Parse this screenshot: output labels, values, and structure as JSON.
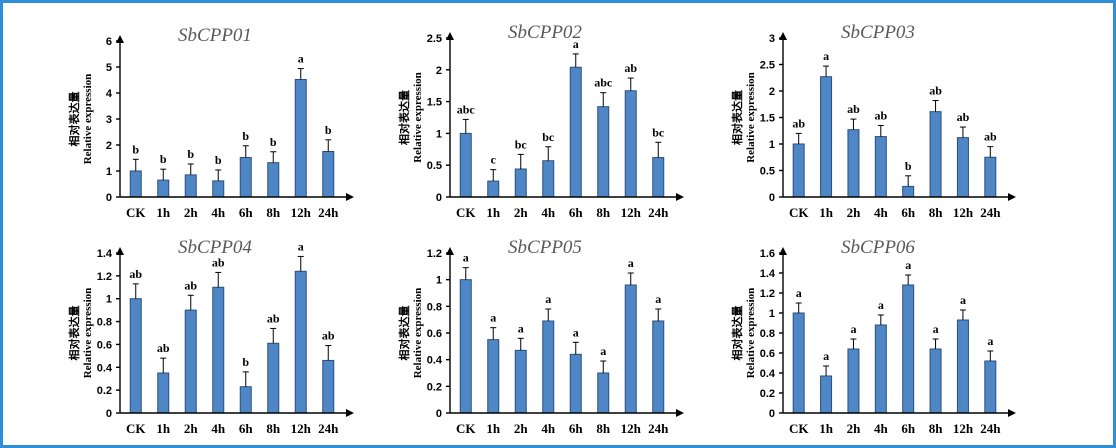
{
  "colors": {
    "bar": "#4f86c6",
    "frame": "#2e8fd6",
    "title": "#595959"
  },
  "chart_data": [
    {
      "type": "bar",
      "title": "SbCPP01",
      "ylabel_cn": "相对表达量",
      "ylabel": "Relative expression",
      "categories": [
        "CK",
        "1h",
        "2h",
        "4h",
        "6h",
        "8h",
        "12h",
        "24h"
      ],
      "values": [
        1.0,
        0.65,
        0.85,
        0.62,
        1.52,
        1.32,
        4.52,
        1.75
      ],
      "errors": [
        0.45,
        0.42,
        0.42,
        0.42,
        0.45,
        0.42,
        0.42,
        0.45
      ],
      "labels": [
        "b",
        "b",
        "b",
        "b",
        "b",
        "b",
        "a",
        "b"
      ],
      "ylim": [
        0,
        6
      ],
      "yticks": [
        "0",
        "1",
        "2",
        "3",
        "4",
        "5",
        "6"
      ]
    },
    {
      "type": "bar",
      "title": "SbCPP02",
      "ylabel_cn": "相对表达量",
      "ylabel": "Relative expression",
      "categories": [
        "CK",
        "1h",
        "2h",
        "4h",
        "6h",
        "8h",
        "12h",
        "24h"
      ],
      "values": [
        1.0,
        0.25,
        0.44,
        0.57,
        2.04,
        1.42,
        1.67,
        0.62
      ],
      "errors": [
        0.22,
        0.18,
        0.23,
        0.22,
        0.21,
        0.22,
        0.2,
        0.24
      ],
      "labels": [
        "abc",
        "c",
        "bc",
        "bc",
        "a",
        "abc",
        "ab",
        "bc"
      ],
      "ylim": [
        0,
        2.5
      ],
      "yticks": [
        "0",
        "0.5",
        "1",
        "1.5",
        "2",
        "2.5"
      ]
    },
    {
      "type": "bar",
      "title": "SbCPP03",
      "ylabel_cn": "相对表达量",
      "ylabel": "Relative expression",
      "categories": [
        "CK",
        "1h",
        "2h",
        "4h",
        "6h",
        "8h",
        "12h",
        "24h"
      ],
      "values": [
        1.0,
        2.27,
        1.27,
        1.14,
        0.2,
        1.61,
        1.12,
        0.75
      ],
      "errors": [
        0.2,
        0.2,
        0.2,
        0.21,
        0.2,
        0.21,
        0.2,
        0.2
      ],
      "labels": [
        "ab",
        "a",
        "ab",
        "ab",
        "b",
        "ab",
        "ab",
        "ab"
      ],
      "ylim": [
        0,
        3
      ],
      "yticks": [
        "0",
        "0.5",
        "1",
        "1.5",
        "2",
        "2.5",
        "3"
      ]
    },
    {
      "type": "bar",
      "title": "SbCPP04",
      "ylabel_cn": "相对表达量",
      "ylabel": "Relative expression",
      "categories": [
        "CK",
        "1h",
        "2h",
        "4h",
        "6h",
        "8h",
        "12h",
        "24h"
      ],
      "values": [
        1.0,
        0.35,
        0.9,
        1.1,
        0.23,
        0.61,
        1.24,
        0.46
      ],
      "errors": [
        0.13,
        0.13,
        0.13,
        0.13,
        0.13,
        0.13,
        0.13,
        0.13
      ],
      "labels": [
        "ab",
        "ab",
        "ab",
        "ab",
        "b",
        "ab",
        "a",
        "ab"
      ],
      "ylim": [
        0,
        1.4
      ],
      "yticks": [
        "0",
        "0.2",
        "0.4",
        "0.6",
        "0.8",
        "1",
        "1.2",
        "1.4"
      ]
    },
    {
      "type": "bar",
      "title": "SbCPP05",
      "ylabel_cn": "相对表达量",
      "ylabel": "Relative expression",
      "categories": [
        "CK",
        "1h",
        "2h",
        "4h",
        "6h",
        "8h",
        "12h",
        "24h"
      ],
      "values": [
        1.0,
        0.55,
        0.47,
        0.69,
        0.44,
        0.3,
        0.96,
        0.69
      ],
      "errors": [
        0.09,
        0.09,
        0.09,
        0.09,
        0.09,
        0.09,
        0.09,
        0.09
      ],
      "labels": [
        "a",
        "a",
        "a",
        "a",
        "a",
        "a",
        "a",
        "a"
      ],
      "ylim": [
        0,
        1.2
      ],
      "yticks": [
        "0",
        "0.2",
        "0.4",
        "0.6",
        "0.8",
        "1",
        "1.2"
      ]
    },
    {
      "type": "bar",
      "title": "SbCPP06",
      "ylabel_cn": "相对表达量",
      "ylabel": "Relative expression",
      "categories": [
        "CK",
        "1h",
        "2h",
        "4h",
        "6h",
        "8h",
        "12h",
        "24h"
      ],
      "values": [
        1.0,
        0.37,
        0.64,
        0.88,
        1.28,
        0.64,
        0.93,
        0.52
      ],
      "errors": [
        0.1,
        0.1,
        0.1,
        0.1,
        0.1,
        0.1,
        0.1,
        0.1
      ],
      "labels": [
        "a",
        "a",
        "a",
        "a",
        "a",
        "a",
        "a",
        "a"
      ],
      "ylim": [
        0,
        1.6
      ],
      "yticks": [
        "0",
        "0.2",
        "0.4",
        "0.6",
        "0.8",
        "1",
        "1.2",
        "1.4",
        "1.6"
      ]
    }
  ]
}
